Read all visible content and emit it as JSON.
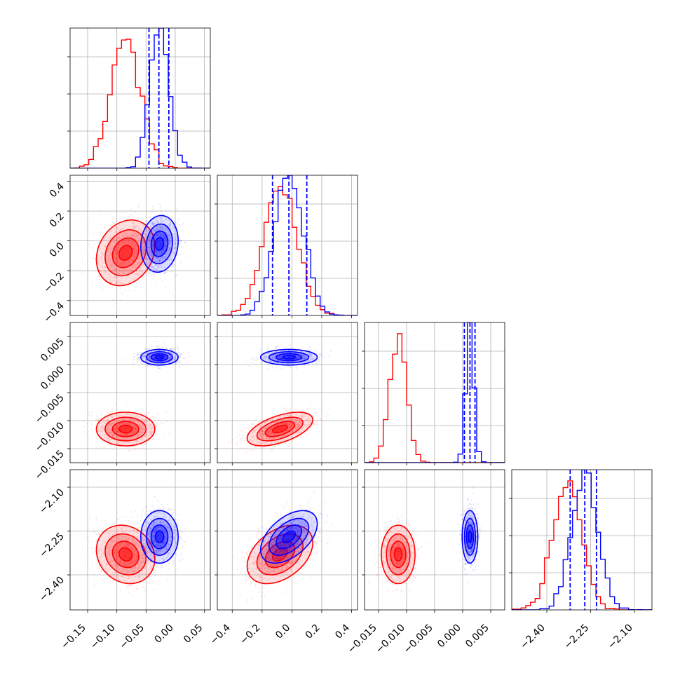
{
  "chart_data": {
    "type": "corner",
    "grid": true,
    "series": [
      {
        "color": "#ff0000",
        "means": [
          -0.085,
          -0.08,
          -0.0115,
          -2.33
        ],
        "stds": [
          0.025,
          0.11,
          0.0015,
          0.05
        ],
        "corr": [
          [
            0,
            1,
            0.2
          ],
          [
            0,
            2,
            0
          ],
          [
            0,
            3,
            -0.15
          ],
          [
            1,
            2,
            0.55
          ],
          [
            1,
            3,
            0.4
          ],
          [
            2,
            3,
            0
          ]
        ]
      },
      {
        "color": "#0000ff",
        "means": [
          -0.027,
          -0.02,
          0.0013,
          -2.27
        ],
        "stds": [
          0.016,
          0.095,
          0.0007,
          0.045
        ],
        "corr": [
          [
            0,
            1,
            0.1
          ],
          [
            0,
            2,
            0
          ],
          [
            0,
            3,
            0
          ],
          [
            1,
            2,
            0
          ],
          [
            1,
            3,
            0.5
          ],
          [
            2,
            3,
            0
          ]
        ]
      }
    ],
    "quantiles": [
      [
        -0.045,
        -0.028,
        -0.011
      ],
      [
        -0.13,
        -0.02,
        0.1
      ],
      [
        0.0003,
        0.0013,
        0.0022
      ],
      [
        -2.32,
        -2.27,
        -2.23
      ]
    ],
    "params": [
      {
        "range": [
          -0.18,
          0.06
        ],
        "ticks": [
          -0.15,
          -0.1,
          -0.05,
          0.0,
          0.05
        ],
        "tick_labels": [
          "−0.15",
          "−0.10",
          "−0.05",
          "0.00",
          "0.05"
        ]
      },
      {
        "range": [
          -0.5,
          0.44
        ],
        "ticks": [
          -0.4,
          -0.2,
          0.0,
          0.2,
          0.4
        ],
        "tick_labels": [
          "−0.4",
          "−0.2",
          "0.0",
          "0.2",
          "0.4"
        ]
      },
      {
        "range": [
          -0.0175,
          0.0075
        ],
        "ticks": [
          -0.015,
          -0.01,
          -0.005,
          0.0,
          0.005
        ],
        "tick_labels": [
          "−0.015",
          "−0.010",
          "−0.005",
          "0.000",
          "0.005"
        ]
      },
      {
        "range": [
          -2.52,
          -2.04
        ],
        "ticks": [
          -2.4,
          -2.25,
          -2.1
        ],
        "tick_labels": [
          "−2.40",
          "−2.25",
          "−2.10"
        ]
      }
    ]
  }
}
